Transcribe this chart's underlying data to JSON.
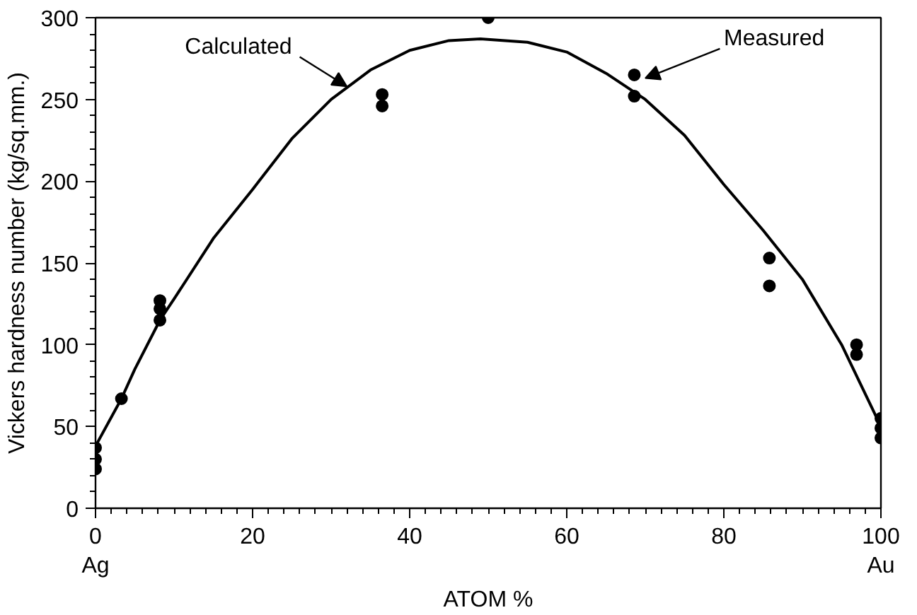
{
  "chart_data": {
    "type": "scatter",
    "xlabel": "ATOM %",
    "ylabel": "Vickers hardness number (kg/sq.mm.)",
    "xlim": [
      0,
      100
    ],
    "ylim": [
      0,
      300
    ],
    "xticks": [
      0,
      20,
      40,
      60,
      80,
      100
    ],
    "yticks": [
      0,
      50,
      100,
      150,
      200,
      250,
      300
    ],
    "grid": false,
    "marker": "circle",
    "series": [
      {
        "color": "#000000",
        "x": [
          0,
          0,
          0,
          3.3,
          8.2,
          8.2,
          8.2,
          36.5,
          36.5,
          50,
          68.6,
          68.6,
          85.8,
          85.8,
          96.9,
          96.9,
          100,
          100,
          100
        ],
        "values": [
          37,
          30,
          24,
          67,
          127,
          122,
          115,
          253,
          246,
          300,
          265,
          252,
          153,
          136,
          100,
          94,
          55,
          49,
          43
        ]
      },
      {
        "type": "line",
        "color": "#000000",
        "line_style": "solid",
        "marker": "none",
        "x": [
          0,
          3.3,
          5,
          8.2,
          10,
          15,
          20,
          25,
          30,
          35,
          40,
          45,
          49,
          55,
          60,
          65,
          70,
          75,
          80,
          85,
          90,
          95,
          100
        ],
        "values": [
          38,
          67,
          85,
          115,
          128,
          165,
          195,
          226,
          250,
          268,
          280,
          286,
          287,
          285,
          279,
          266,
          250,
          228,
          198,
          170,
          140,
          100,
          50
        ]
      }
    ],
    "annotations": [
      {
        "text": "Calculated",
        "x": 32,
        "y": 258
      },
      {
        "text": "Measured",
        "x": 70,
        "y": 263
      },
      "Ag",
      "Au"
    ]
  }
}
